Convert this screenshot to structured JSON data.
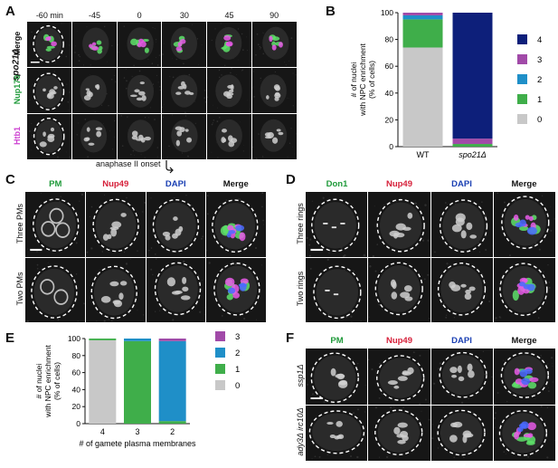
{
  "panels": {
    "A": {
      "label": "A",
      "strain": "spo21Δ",
      "times": [
        "-60 min",
        "-45",
        "0",
        "30",
        "45",
        "90"
      ],
      "rows": [
        {
          "label": "Merge",
          "color": "#111111"
        },
        {
          "label": "Nup170",
          "color": "#1f9a3a"
        },
        {
          "label": "Htb1",
          "color": "#cc3fd0"
        }
      ],
      "annotation": "anaphase II onset"
    },
    "B": {
      "label": "B"
    },
    "C": {
      "label": "C",
      "columns": [
        {
          "label": "PM",
          "color": "#1f9a3a"
        },
        {
          "label": "Nup49",
          "color": "#d6203a"
        },
        {
          "label": "DAPI",
          "color": "#1a3fb3"
        },
        {
          "label": "Merge",
          "color": "#111111"
        }
      ],
      "rows": [
        "Three PMs",
        "Two PMs"
      ]
    },
    "D": {
      "label": "D",
      "columns": [
        {
          "label": "Don1",
          "color": "#1f9a3a"
        },
        {
          "label": "Nup49",
          "color": "#d6203a"
        },
        {
          "label": "DAPI",
          "color": "#1a3fb3"
        },
        {
          "label": "Merge",
          "color": "#111111"
        }
      ],
      "rows": [
        "Three rings",
        "Two rings"
      ]
    },
    "E": {
      "label": "E"
    },
    "F": {
      "label": "F",
      "columns": [
        {
          "label": "PM",
          "color": "#1f9a3a"
        },
        {
          "label": "Nup49",
          "color": "#d6203a"
        },
        {
          "label": "DAPI",
          "color": "#1a3fb3"
        },
        {
          "label": "Merge",
          "color": "#111111"
        }
      ],
      "rows": [
        "ssp1Δ",
        "ady3Δ irc10Δ"
      ]
    }
  },
  "chart_data": [
    {
      "panel": "B",
      "type": "bar",
      "stacked": true,
      "categories": [
        "WT",
        "spo21Δ"
      ],
      "ylabel": "# of nuclei with NPC enrichment (% of cells)",
      "ylim": [
        0,
        100
      ],
      "yticks": [
        0,
        20,
        40,
        60,
        80,
        100
      ],
      "series": [
        {
          "name": "0",
          "color": "#c8c8c8",
          "values": [
            74,
            0
          ]
        },
        {
          "name": "1",
          "color": "#3fae4a",
          "values": [
            21,
            2
          ]
        },
        {
          "name": "2",
          "color": "#1f8fc8",
          "values": [
            3,
            0
          ]
        },
        {
          "name": "3",
          "color": "#a14aa8",
          "values": [
            2,
            4
          ]
        },
        {
          "name": "4",
          "color": "#0d1f7a",
          "values": [
            0,
            94
          ]
        }
      ],
      "legend_order": [
        "4",
        "3",
        "2",
        "1",
        "0"
      ],
      "legend": "right"
    },
    {
      "panel": "E",
      "type": "bar",
      "stacked": true,
      "categories": [
        "4",
        "3",
        "2"
      ],
      "xlabel": "# of gamete plasma membranes",
      "ylabel": "# of nuclei with NPC enrichment (% of cells)",
      "ylim": [
        0,
        100
      ],
      "yticks": [
        0,
        20,
        40,
        60,
        80,
        100
      ],
      "series": [
        {
          "name": "0",
          "color": "#c8c8c8",
          "values": [
            98,
            0,
            0
          ]
        },
        {
          "name": "1",
          "color": "#3fae4a",
          "values": [
            2,
            97,
            3
          ]
        },
        {
          "name": "2",
          "color": "#1f8fc8",
          "values": [
            0,
            3,
            94
          ]
        },
        {
          "name": "3",
          "color": "#a14aa8",
          "values": [
            0,
            0,
            3
          ]
        }
      ],
      "legend_order": [
        "3",
        "2",
        "1",
        "0"
      ],
      "legend": "right"
    }
  ]
}
